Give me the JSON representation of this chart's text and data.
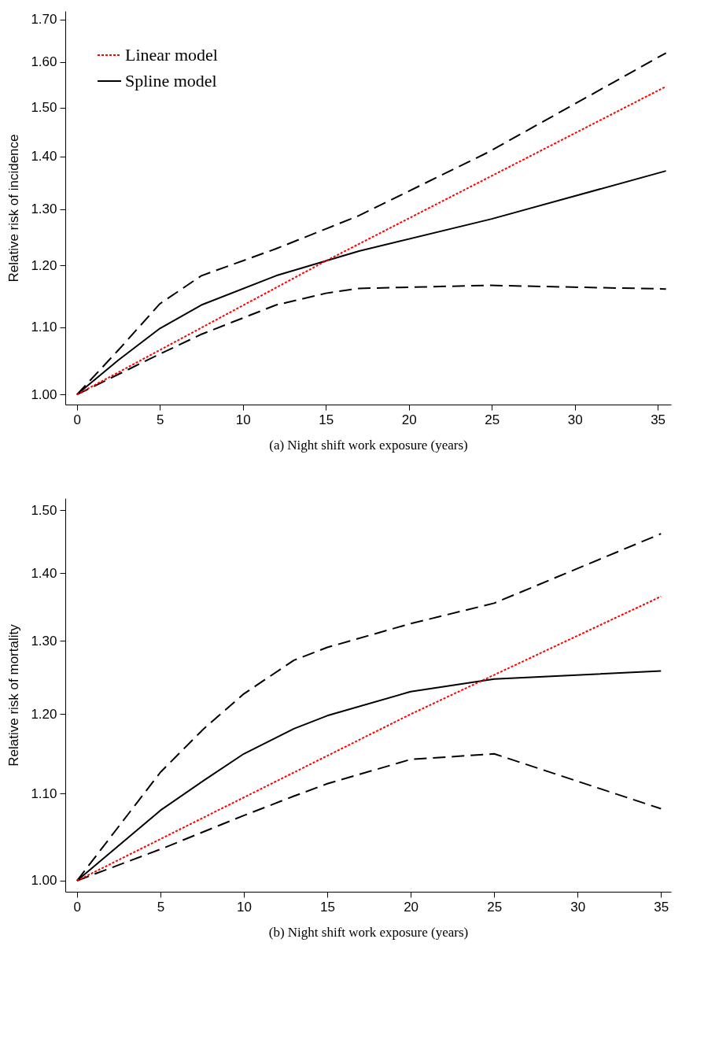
{
  "chart_data": [
    {
      "type": "line",
      "xlabel": "(a) Night shift work exposure (years)",
      "ylabel": "Relative risk of incidence",
      "log": "y",
      "grid": false,
      "legend": "top left",
      "xlim": [
        -0.7,
        35.8
      ],
      "xticks": [
        0,
        5,
        10,
        15,
        20,
        25,
        30,
        35
      ],
      "ylim": [
        0.986,
        1.72
      ],
      "yticks": [
        {
          "value": 1,
          "label": "1.00"
        },
        {
          "value": 1.1,
          "label": "1.10"
        },
        {
          "value": 1.2,
          "label": "1.20"
        },
        {
          "value": 1.3,
          "label": "1.30"
        },
        {
          "value": 1.4,
          "label": "1.40"
        },
        {
          "value": 1.5,
          "label": "1.50"
        },
        {
          "value": 1.6,
          "label": "1.60"
        },
        {
          "value": 1.7,
          "label": "1.70"
        }
      ],
      "series": [
        {
          "name": "Linear model",
          "color": "#ff0000",
          "line_style": "dotted",
          "x": [
            0,
            15,
            35.5
          ],
          "values": [
            1,
            1.208,
            1.546
          ]
        },
        {
          "name": "Spline model",
          "color": "#000000",
          "line_style": "solid",
          "x": [
            0,
            2.5,
            5,
            7.5,
            12,
            15,
            17,
            25,
            35.5
          ],
          "values": [
            1,
            1.05,
            1.098,
            1.135,
            1.183,
            1.208,
            1.225,
            1.282,
            1.372
          ]
        },
        {
          "color": "#000000",
          "line_style": "dashed",
          "x": [
            0,
            2.5,
            5,
            7.5,
            12,
            15,
            17,
            24.8,
            35.5
          ],
          "values": [
            1,
            1.065,
            1.137,
            1.183,
            1.229,
            1.264,
            1.288,
            1.409,
            1.621
          ]
        },
        {
          "color": "#000000",
          "line_style": "dashed",
          "x": [
            0,
            5,
            7.5,
            12,
            15,
            17,
            24.8,
            35.5
          ],
          "values": [
            1,
            1.059,
            1.089,
            1.135,
            1.154,
            1.162,
            1.167,
            1.161
          ]
        }
      ]
    },
    {
      "type": "line",
      "xlabel": "(b) Night shift work exposure (years)",
      "ylabel": "Relative risk of mortality",
      "log": "y",
      "grid": false,
      "legend": "top left",
      "xlim": [
        -0.7,
        35.6
      ],
      "xticks": [
        0,
        5,
        10,
        15,
        20,
        25,
        30,
        35
      ],
      "ylim": [
        0.988,
        1.52
      ],
      "yticks": [
        {
          "value": 1,
          "label": "1.00"
        },
        {
          "value": 1.1,
          "label": "1.10"
        },
        {
          "value": 1.2,
          "label": "1.20"
        },
        {
          "value": 1.3,
          "label": "1.30"
        },
        {
          "value": 1.4,
          "label": "1.40"
        },
        {
          "value": 1.5,
          "label": "1.50"
        }
      ],
      "series": [
        {
          "name": "Linear model",
          "color": "#ff0000",
          "line_style": "dotted",
          "x": [
            0,
            20,
            35
          ],
          "values": [
            1,
            1.2,
            1.365
          ]
        },
        {
          "name": "Spline model",
          "color": "#000000",
          "line_style": "solid",
          "x": [
            0,
            5,
            7.6,
            10,
            13,
            15,
            20,
            25,
            35
          ],
          "values": [
            1,
            1.08,
            1.116,
            1.149,
            1.181,
            1.198,
            1.23,
            1.247,
            1.258
          ]
        },
        {
          "color": "#000000",
          "line_style": "dashed",
          "x": [
            0,
            5,
            7.6,
            10,
            13,
            15,
            20,
            25,
            35
          ],
          "values": [
            1,
            1.126,
            1.181,
            1.227,
            1.273,
            1.291,
            1.325,
            1.355,
            1.462
          ]
        },
        {
          "color": "#000000",
          "line_style": "dashed",
          "x": [
            0,
            5,
            10,
            13,
            15,
            20,
            25,
            35
          ],
          "values": [
            1,
            1.035,
            1.074,
            1.097,
            1.112,
            1.142,
            1.149,
            1.082
          ]
        }
      ]
    }
  ]
}
